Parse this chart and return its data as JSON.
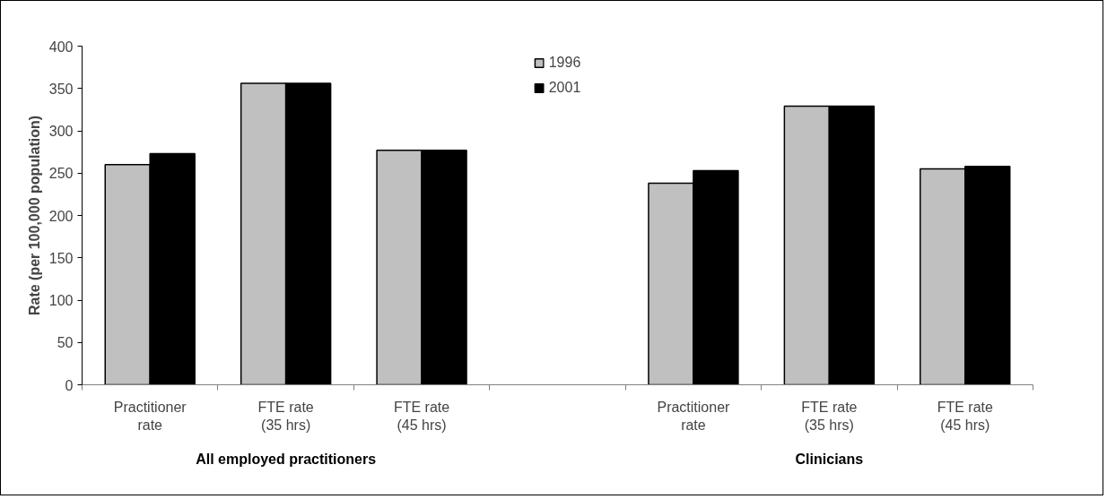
{
  "chart_data": {
    "type": "bar",
    "ylabel": "Rate (per 100,000 population)",
    "categories": [
      "Practitioner rate",
      "FTE rate (35 hrs)",
      "FTE rate (45 hrs)",
      null,
      "Practitioner rate",
      "FTE rate (35 hrs)",
      "FTE rate (45 hrs)"
    ],
    "series": [
      {
        "name": "1996",
        "color": "#c0c0c0",
        "values": [
          260,
          356,
          277,
          null,
          238,
          329,
          255
        ]
      },
      {
        "name": "2001",
        "color": "#000000",
        "values": [
          273,
          356,
          277,
          null,
          253,
          329,
          258
        ]
      }
    ],
    "ylim": [
      0,
      400
    ],
    "yticks": [
      0,
      50,
      100,
      150,
      200,
      250,
      300,
      350,
      400
    ],
    "grid": false,
    "legend": "top",
    "annotations": [
      "All employed practitioners",
      "Clinicians"
    ]
  }
}
